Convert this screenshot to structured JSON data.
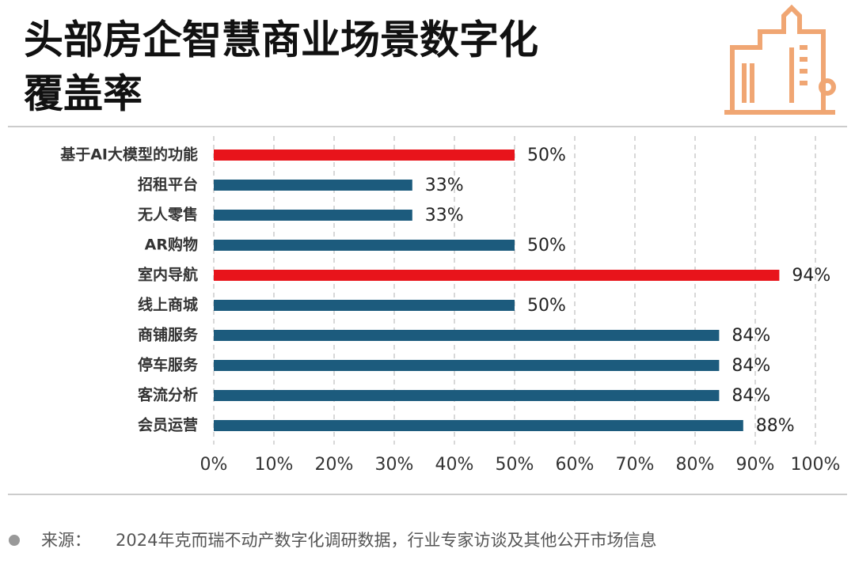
{
  "chart_data": {
    "type": "bar",
    "orientation": "horizontal",
    "title": "头部房企智慧商业场景数字化",
    "title_line2": "覆盖率",
    "categories": [
      "基于AI大模型的功能",
      "招租平台",
      "无人零售",
      "AR购物",
      "室内导航",
      "线上商城",
      "商铺服务",
      "停车服务",
      "客流分析",
      "会员运营"
    ],
    "values": [
      50,
      33,
      33,
      50,
      94,
      50,
      84,
      84,
      84,
      88
    ],
    "value_labels": [
      "50%",
      "33%",
      "33%",
      "50%",
      "94%",
      "50%",
      "84%",
      "84%",
      "84%",
      "88%"
    ],
    "colors": [
      "#e8141b",
      "#1c5b7d",
      "#1c5b7d",
      "#1c5b7d",
      "#e8141b",
      "#1c5b7d",
      "#1c5b7d",
      "#1c5b7d",
      "#1c5b7d",
      "#1c5b7d"
    ],
    "xlim": [
      0,
      100
    ],
    "xticks": [
      {
        "value": 0,
        "label": "0%"
      },
      {
        "value": 10,
        "label": "10%"
      },
      {
        "value": 20,
        "label": "20%"
      },
      {
        "value": 30,
        "label": "30%"
      },
      {
        "value": 40,
        "label": "40%"
      },
      {
        "value": 50,
        "label": "50%"
      },
      {
        "value": 60,
        "label": "60%"
      },
      {
        "value": 70,
        "label": "70%"
      },
      {
        "value": 80,
        "label": "80%"
      },
      {
        "value": 90,
        "label": "90%"
      },
      {
        "value": 100,
        "label": "100%"
      }
    ],
    "grid": true,
    "source_label": "来源：",
    "source": "2024年克而瑞不动产数字化调研数据，行业专家访谈及其他公开市场信息"
  }
}
